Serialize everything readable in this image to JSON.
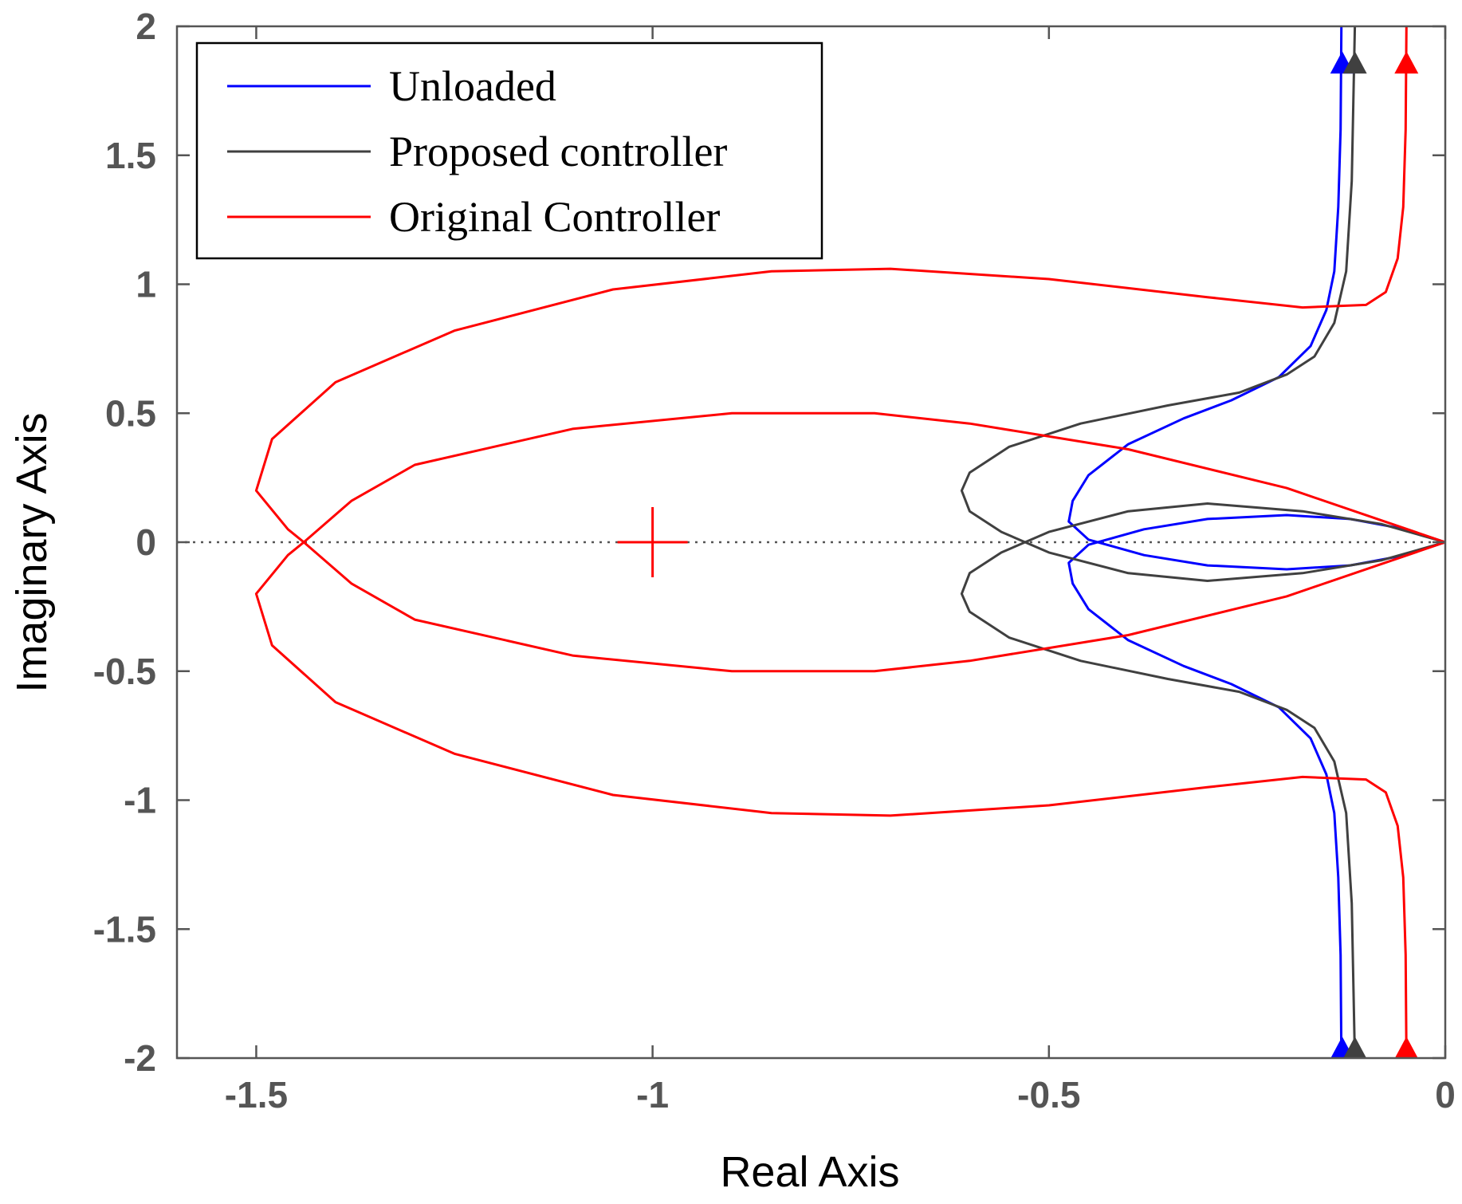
{
  "chart_data": {
    "type": "line",
    "title": "",
    "xlabel": "Real Axis",
    "ylabel": "Imaginary Axis",
    "xlim": [
      -1.6,
      0
    ],
    "ylim": [
      -2,
      2
    ],
    "xticks": [
      -1.5,
      -1,
      -0.5,
      0
    ],
    "xtick_labels": [
      "-1.5",
      "-1",
      "-0.5",
      "0"
    ],
    "yticks": [
      -2,
      -1.5,
      -1,
      -0.5,
      0,
      0.5,
      1,
      1.5,
      2
    ],
    "ytick_labels": [
      "-2",
      "-1.5",
      "-1",
      "-0.5",
      "0",
      "0.5",
      "1",
      "1.5",
      "2"
    ],
    "grid": false,
    "legend_position": "top-left",
    "zero_line": {
      "y": 0,
      "style": "dotted",
      "color": "#555555"
    },
    "markers": [
      {
        "series": "Unloaded",
        "shape": "triangle",
        "x": -0.13,
        "y": 1.86
      },
      {
        "series": "Unloaded",
        "shape": "triangle",
        "x": -0.13,
        "y": -1.96
      },
      {
        "series": "Proposed controller",
        "shape": "triangle",
        "x": -0.114,
        "y": 1.86
      },
      {
        "series": "Proposed controller",
        "shape": "triangle",
        "x": -0.114,
        "y": -1.96
      },
      {
        "series": "Original Controller",
        "shape": "triangle",
        "x": -0.049,
        "y": 1.86
      },
      {
        "series": "Original Controller",
        "shape": "triangle",
        "x": -0.049,
        "y": -1.96
      },
      {
        "series": "Original Controller",
        "shape": "plus",
        "x": -1.0,
        "y": 0
      }
    ],
    "series": [
      {
        "name": "Unloaded",
        "color": "#0000ff",
        "branches": [
          [
            [
              0,
              0
            ],
            [
              -0.05,
              0.05
            ],
            [
              -0.12,
              0.09
            ],
            [
              -0.2,
              0.105
            ],
            [
              -0.3,
              0.09
            ],
            [
              -0.38,
              0.05
            ],
            [
              -0.45,
              -0.01
            ],
            [
              -0.475,
              -0.08
            ],
            [
              -0.47,
              -0.16
            ],
            [
              -0.45,
              -0.26
            ],
            [
              -0.4,
              -0.38
            ],
            [
              -0.33,
              -0.48
            ],
            [
              -0.27,
              -0.55
            ],
            [
              -0.21,
              -0.64
            ],
            [
              -0.17,
              -0.76
            ],
            [
              -0.15,
              -0.9
            ],
            [
              -0.14,
              -1.05
            ],
            [
              -0.135,
              -1.3
            ],
            [
              -0.132,
              -1.6
            ],
            [
              -0.131,
              -2.0
            ]
          ],
          [
            [
              0,
              0
            ],
            [
              -0.05,
              -0.05
            ],
            [
              -0.12,
              -0.09
            ],
            [
              -0.2,
              -0.105
            ],
            [
              -0.3,
              -0.09
            ],
            [
              -0.38,
              -0.05
            ],
            [
              -0.45,
              0.01
            ],
            [
              -0.475,
              0.08
            ],
            [
              -0.47,
              0.16
            ],
            [
              -0.45,
              0.26
            ],
            [
              -0.4,
              0.38
            ],
            [
              -0.33,
              0.48
            ],
            [
              -0.27,
              0.55
            ],
            [
              -0.21,
              0.64
            ],
            [
              -0.17,
              0.76
            ],
            [
              -0.15,
              0.9
            ],
            [
              -0.14,
              1.05
            ],
            [
              -0.135,
              1.3
            ],
            [
              -0.132,
              1.6
            ],
            [
              -0.131,
              2.0
            ]
          ]
        ]
      },
      {
        "name": "Proposed controller",
        "color": "#404040",
        "branches": [
          [
            [
              0,
              0
            ],
            [
              -0.08,
              0.07
            ],
            [
              -0.18,
              0.12
            ],
            [
              -0.3,
              0.15
            ],
            [
              -0.4,
              0.12
            ],
            [
              -0.5,
              0.04
            ],
            [
              -0.56,
              -0.04
            ],
            [
              -0.6,
              -0.12
            ],
            [
              -0.61,
              -0.2
            ],
            [
              -0.6,
              -0.27
            ],
            [
              -0.55,
              -0.37
            ],
            [
              -0.46,
              -0.46
            ],
            [
              -0.35,
              -0.53
            ],
            [
              -0.26,
              -0.58
            ],
            [
              -0.2,
              -0.65
            ],
            [
              -0.165,
              -0.72
            ],
            [
              -0.14,
              -0.85
            ],
            [
              -0.125,
              -1.05
            ],
            [
              -0.118,
              -1.4
            ],
            [
              -0.114,
              -2.0
            ]
          ],
          [
            [
              0,
              0
            ],
            [
              -0.08,
              -0.07
            ],
            [
              -0.18,
              -0.12
            ],
            [
              -0.3,
              -0.15
            ],
            [
              -0.4,
              -0.12
            ],
            [
              -0.5,
              -0.04
            ],
            [
              -0.56,
              0.04
            ],
            [
              -0.6,
              0.12
            ],
            [
              -0.61,
              0.2
            ],
            [
              -0.6,
              0.27
            ],
            [
              -0.55,
              0.37
            ],
            [
              -0.46,
              0.46
            ],
            [
              -0.35,
              0.53
            ],
            [
              -0.26,
              0.58
            ],
            [
              -0.2,
              0.65
            ],
            [
              -0.165,
              0.72
            ],
            [
              -0.14,
              0.85
            ],
            [
              -0.125,
              1.05
            ],
            [
              -0.118,
              1.4
            ],
            [
              -0.114,
              2.0
            ]
          ]
        ]
      },
      {
        "name": "Original Controller",
        "color": "#ff0000",
        "branches": [
          [
            [
              0,
              0
            ],
            [
              -0.2,
              0.21
            ],
            [
              -0.4,
              0.36
            ],
            [
              -0.6,
              0.46
            ],
            [
              -0.72,
              0.5
            ],
            [
              -0.9,
              0.5
            ],
            [
              -1.1,
              0.44
            ],
            [
              -1.3,
              0.3
            ],
            [
              -1.38,
              0.16
            ],
            [
              -1.44,
              0
            ],
            [
              -1.46,
              -0.05
            ],
            [
              -1.5,
              -0.2
            ],
            [
              -1.48,
              -0.4
            ],
            [
              -1.4,
              -0.62
            ],
            [
              -1.25,
              -0.82
            ],
            [
              -1.05,
              -0.98
            ],
            [
              -0.85,
              -1.05
            ],
            [
              -0.7,
              -1.06
            ],
            [
              -0.5,
              -1.02
            ],
            [
              -0.3,
              -0.95
            ],
            [
              -0.18,
              -0.91
            ],
            [
              -0.1,
              -0.92
            ],
            [
              -0.075,
              -0.97
            ],
            [
              -0.06,
              -1.1
            ],
            [
              -0.053,
              -1.3
            ],
            [
              -0.05,
              -1.6
            ],
            [
              -0.049,
              -2.0
            ]
          ],
          [
            [
              0,
              0
            ],
            [
              -0.2,
              -0.21
            ],
            [
              -0.4,
              -0.36
            ],
            [
              -0.6,
              -0.46
            ],
            [
              -0.72,
              -0.5
            ],
            [
              -0.9,
              -0.5
            ],
            [
              -1.1,
              -0.44
            ],
            [
              -1.3,
              -0.3
            ],
            [
              -1.38,
              -0.16
            ],
            [
              -1.44,
              0
            ],
            [
              -1.46,
              0.05
            ],
            [
              -1.5,
              0.2
            ],
            [
              -1.48,
              0.4
            ],
            [
              -1.4,
              0.62
            ],
            [
              -1.25,
              0.82
            ],
            [
              -1.05,
              0.98
            ],
            [
              -0.85,
              1.05
            ],
            [
              -0.7,
              1.06
            ],
            [
              -0.5,
              1.02
            ],
            [
              -0.3,
              0.95
            ],
            [
              -0.18,
              0.91
            ],
            [
              -0.1,
              0.92
            ],
            [
              -0.075,
              0.97
            ],
            [
              -0.06,
              1.1
            ],
            [
              -0.053,
              1.3
            ],
            [
              -0.05,
              1.6
            ],
            [
              -0.049,
              2.0
            ]
          ]
        ]
      }
    ]
  }
}
